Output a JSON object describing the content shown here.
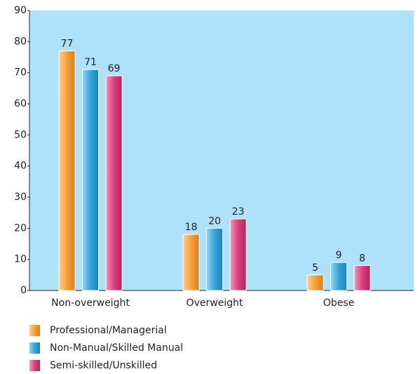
{
  "chart_data": {
    "type": "bar",
    "categories": [
      "Non-overweight",
      "Overweight",
      "Obese"
    ],
    "series": [
      {
        "name": "Professional/Managerial",
        "color": "#f7941d",
        "values": [
          77,
          18,
          5
        ]
      },
      {
        "name": "Non-Manual/Skilled Manual",
        "color": "#1b9ad8",
        "values": [
          71,
          20,
          9
        ]
      },
      {
        "name": "Semi-skilled/Unskilled",
        "color": "#d4276f",
        "values": [
          69,
          23,
          8
        ]
      }
    ],
    "ylim": [
      0,
      90
    ],
    "yticks": [
      0,
      10,
      20,
      30,
      40,
      50,
      60,
      70,
      80,
      90
    ],
    "legend": "bottom-left"
  }
}
